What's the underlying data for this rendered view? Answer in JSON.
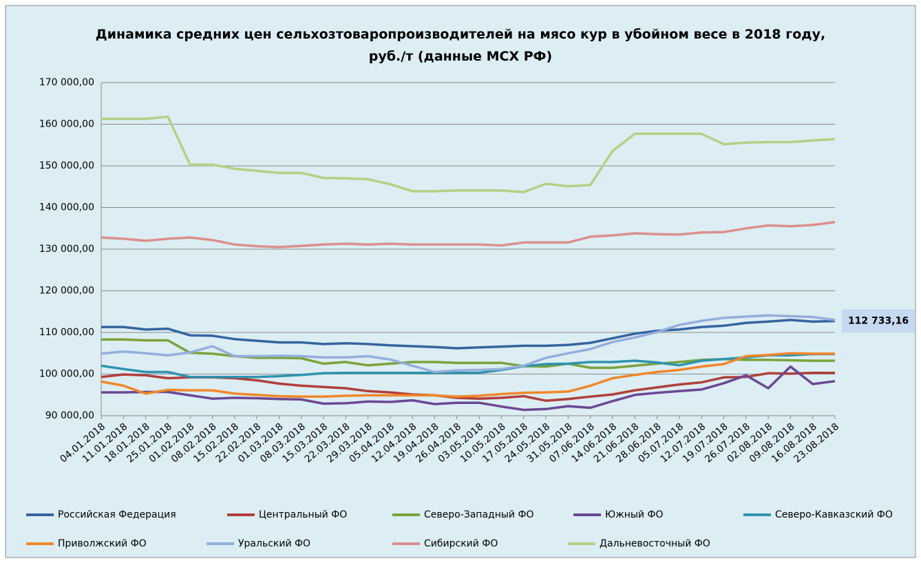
{
  "chart_data": {
    "type": "line",
    "title": "Динамика средних цен сельхозтоваропроизводителей на мясо кур в убойном весе в 2018 году, руб./т (данные МСХ РФ)",
    "categories": [
      "04.01.2018",
      "11.01.2018",
      "18.01.2018",
      "25.01.2018",
      "01.02.2018",
      "08.02.2018",
      "15.02.2018",
      "22.02.2018",
      "01.03.2018",
      "08.03.2018",
      "15.03.2018",
      "22.03.2018",
      "29.03.2018",
      "05.04.2018",
      "12.04.2018",
      "19.04.2018",
      "26.04.2018",
      "03.05.2018",
      "10.05.2018",
      "17.05.2018",
      "24.05.2018",
      "31.05.2018",
      "07.06.2018",
      "14.06.2018",
      "21.06.2018",
      "28.06.2018",
      "05.07.2018",
      "12.07.2018",
      "19.07.2018",
      "26.07.2018",
      "02.08.2018",
      "09.08.2018",
      "16.08.2018",
      "23.08.2018"
    ],
    "ylim": [
      90000,
      170000
    ],
    "yticks": [
      {
        "value": 90000,
        "label": "90 000,00"
      },
      {
        "value": 100000,
        "label": "100 000,00"
      },
      {
        "value": 110000,
        "label": "110 000,00"
      },
      {
        "value": 120000,
        "label": "120 000,00"
      },
      {
        "value": 130000,
        "label": "130 000,00"
      },
      {
        "value": 140000,
        "label": "140 000,00"
      },
      {
        "value": 150000,
        "label": "150 000,00"
      },
      {
        "value": 160000,
        "label": "160 000,00"
      },
      {
        "value": 170000,
        "label": "170 000,00"
      }
    ],
    "grid": true,
    "legend": "bottom",
    "series": [
      {
        "name": "Российская Федерация",
        "color": "#35649f",
        "values": [
          111300,
          111300,
          110700,
          110900,
          109300,
          109200,
          108400,
          108000,
          107600,
          107600,
          107200,
          107400,
          107200,
          106900,
          106700,
          106500,
          106200,
          106400,
          106600,
          106800,
          106800,
          107000,
          107500,
          108600,
          109700,
          110400,
          110700,
          111300,
          111600,
          112300,
          112600,
          113000,
          112600,
          112733.16
        ],
        "value_labels": [
          null,
          null,
          null,
          null,
          null,
          null,
          null,
          null,
          null,
          null,
          null,
          null,
          null,
          null,
          null,
          null,
          null,
          null,
          null,
          null,
          null,
          null,
          null,
          null,
          null,
          null,
          null,
          null,
          null,
          null,
          null,
          null,
          null,
          "112 733,16"
        ]
      },
      {
        "name": "Центральный ФО",
        "color": "#b03f3b",
        "values": [
          99300,
          99900,
          99700,
          99000,
          99200,
          99200,
          99000,
          98500,
          97700,
          97200,
          96900,
          96600,
          95900,
          95600,
          95100,
          94900,
          94300,
          94100,
          94300,
          94700,
          93600,
          94000,
          94600,
          95100,
          96100,
          96800,
          97500,
          98000,
          99200,
          99300,
          100200,
          100100,
          100300,
          100300
        ]
      },
      {
        "name": "Северо-Западный ФО",
        "color": "#7aa33c",
        "values": [
          108300,
          108300,
          108100,
          108100,
          105100,
          104900,
          104300,
          103900,
          103900,
          103800,
          102500,
          102900,
          102100,
          102500,
          102900,
          102900,
          102700,
          102700,
          102700,
          101900,
          101800,
          102500,
          101500,
          101500,
          102000,
          102500,
          102900,
          103400,
          103600,
          103400,
          103400,
          103300,
          103200,
          103200
        ]
      },
      {
        "name": "Южный ФО",
        "color": "#6a4892",
        "values": [
          95600,
          95600,
          95700,
          95700,
          94900,
          94100,
          94300,
          94200,
          94000,
          93900,
          92900,
          93000,
          93400,
          93300,
          93700,
          92800,
          93100,
          93100,
          92200,
          91400,
          91600,
          92300,
          91900,
          93500,
          95000,
          95500,
          95900,
          96300,
          97800,
          99700,
          96600,
          101800,
          97600,
          98300
        ]
      },
      {
        "name": "Северо-Кавказский ФО",
        "color": "#2f93ae",
        "values": [
          102000,
          101200,
          100500,
          100500,
          99300,
          99300,
          99300,
          99300,
          99500,
          99800,
          100200,
          100300,
          100300,
          100300,
          100300,
          100300,
          100300,
          100300,
          101000,
          101900,
          102400,
          102500,
          102900,
          102900,
          103200,
          102800,
          102100,
          103200,
          103600,
          104000,
          104500,
          104500,
          104800,
          104800
        ]
      },
      {
        "name": "Приволжский ФО",
        "color": "#f08729",
        "values": [
          98200,
          97200,
          95300,
          96200,
          96100,
          96100,
          95300,
          95000,
          94700,
          94600,
          94600,
          94800,
          94900,
          94900,
          94900,
          94900,
          94600,
          94800,
          95200,
          95500,
          95600,
          95800,
          97200,
          99000,
          99800,
          100500,
          101000,
          101800,
          102400,
          104300,
          104600,
          105000,
          104900,
          104900
        ]
      },
      {
        "name": "Уральский ФО",
        "color": "#95aedb",
        "values": [
          104900,
          105400,
          105000,
          104500,
          105200,
          106700,
          104300,
          104300,
          104400,
          104300,
          104000,
          104000,
          104300,
          103500,
          102000,
          100500,
          100900,
          101000,
          101200,
          102000,
          103900,
          105000,
          106000,
          107700,
          108800,
          110100,
          111800,
          112800,
          113500,
          113800,
          114100,
          113900,
          113700,
          113000
        ]
      },
      {
        "name": "Сибирский ФО",
        "color": "#db8f8c",
        "values": [
          132800,
          132500,
          132000,
          132500,
          132800,
          132200,
          131100,
          130700,
          130500,
          130800,
          131100,
          131300,
          131100,
          131300,
          131100,
          131100,
          131100,
          131100,
          130900,
          131600,
          131600,
          131600,
          133000,
          133300,
          133800,
          133600,
          133500,
          134000,
          134100,
          135000,
          135700,
          135500,
          135800,
          136500
        ]
      },
      {
        "name": "Дальневосточный ФО",
        "color": "#b3d185",
        "values": [
          161300,
          161300,
          161300,
          161800,
          150300,
          150300,
          149300,
          148800,
          148300,
          148300,
          147100,
          147000,
          146800,
          145600,
          143900,
          143900,
          144100,
          144100,
          144100,
          143700,
          145700,
          145100,
          145400,
          153600,
          157700,
          157700,
          157700,
          157700,
          155200,
          155600,
          155700,
          155700,
          156100,
          156400
        ]
      }
    ]
  }
}
